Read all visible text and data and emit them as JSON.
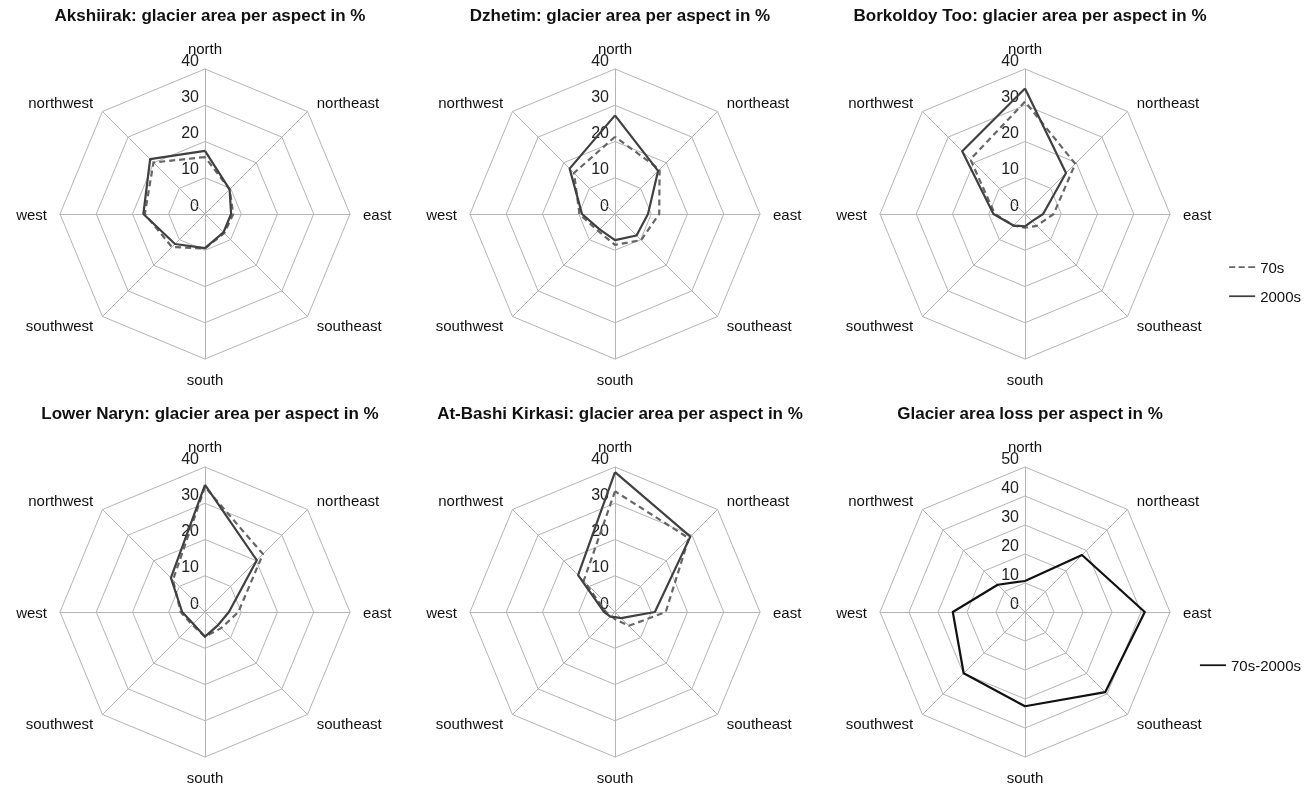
{
  "chart_data": [
    {
      "type": "radar",
      "title": "Akshiirak: glacier area per aspect in %",
      "categories": [
        "north",
        "northeast",
        "east",
        "southeast",
        "south",
        "southwest",
        "west",
        "northwest"
      ],
      "ylim": [
        0,
        40
      ],
      "yticks": [
        0,
        10,
        20,
        30,
        40
      ],
      "grid": true,
      "marker": "none",
      "legend": false,
      "series": [
        {
          "color": "#666666",
          "line_style": "dashed",
          "values": [
            15.7,
            9.6,
            7.8,
            7.5,
            9.5,
            12.9,
            16.6,
            20.1
          ]
        },
        {
          "color": "#404040",
          "line_style": "solid",
          "values": [
            17.4,
            9.6,
            7.2,
            7.2,
            9.4,
            11.7,
            17,
            21.4
          ]
        }
      ]
    },
    {
      "type": "radar",
      "title": "Dzhetim: glacier area per aspect in %",
      "categories": [
        "north",
        "northeast",
        "east",
        "southeast",
        "south",
        "southwest",
        "west",
        "northwest"
      ],
      "ylim": [
        0,
        40
      ],
      "yticks": [
        0,
        10,
        20,
        30,
        40
      ],
      "grid": true,
      "marker": "none",
      "legend": false,
      "series": [
        {
          "color": "#666666",
          "line_style": "dashed",
          "values": [
            21.3,
            17.4,
            12.2,
            10.2,
            8.5,
            6.6,
            9.8,
            16
          ]
        },
        {
          "color": "#404040",
          "line_style": "solid",
          "values": [
            27.2,
            16.8,
            9.1,
            8.4,
            7.2,
            6,
            9.1,
            17.7
          ]
        }
      ]
    },
    {
      "type": "radar",
      "title": "Borkoldoy Too: glacier area per aspect in %",
      "categories": [
        "north",
        "northeast",
        "east",
        "southeast",
        "south",
        "southwest",
        "west",
        "northwest"
      ],
      "ylim": [
        0,
        40
      ],
      "yticks": [
        0,
        10,
        20,
        30,
        40
      ],
      "grid": true,
      "marker": "none",
      "legend": "right",
      "series": [
        {
          "name": "70s",
          "color": "#666666",
          "line_style": "dashed",
          "values": [
            31,
            19.6,
            7.9,
            4.6,
            3.8,
            4.5,
            8.3,
            21.3
          ]
        },
        {
          "name": "2000s",
          "color": "#404040",
          "line_style": "solid",
          "values": [
            34.6,
            16,
            5,
            2.8,
            3.4,
            4.5,
            8.7,
            24.5
          ]
        }
      ]
    },
    {
      "type": "radar",
      "title": "Lower Naryn: glacier area per aspect in %",
      "categories": [
        "north",
        "northeast",
        "east",
        "southeast",
        "south",
        "southwest",
        "west",
        "northwest"
      ],
      "ylim": [
        0,
        40
      ],
      "yticks": [
        0,
        10,
        20,
        30,
        40
      ],
      "grid": true,
      "marker": "none",
      "legend": false,
      "series": [
        {
          "color": "#666666",
          "line_style": "dashed",
          "values": [
            34.5,
            22.6,
            9.2,
            6.3,
            6.8,
            5,
            6.7,
            12.5
          ]
        },
        {
          "color": "#404040",
          "line_style": "solid",
          "values": [
            35.1,
            20.2,
            6.6,
            5.1,
            6.8,
            4.6,
            6.3,
            13.3
          ]
        }
      ]
    },
    {
      "type": "radar",
      "title": "At-Bashi Kirkasi: glacier area per aspect in %",
      "categories": [
        "north",
        "northeast",
        "east",
        "southeast",
        "south",
        "southwest",
        "west",
        "northwest"
      ],
      "ylim": [
        0,
        40
      ],
      "yticks": [
        0,
        10,
        20,
        30,
        40
      ],
      "grid": true,
      "marker": "none",
      "legend": false,
      "series": [
        {
          "color": "#666666",
          "line_style": "dashed",
          "values": [
            33.3,
            28.8,
            14,
            5.4,
            2,
            1.5,
            2.5,
            12.2
          ]
        },
        {
          "color": "#404040",
          "line_style": "solid",
          "values": [
            38.6,
            29.4,
            11,
            2.4,
            1.4,
            1.8,
            3,
            14.4
          ]
        }
      ]
    },
    {
      "type": "radar",
      "title": "Glacier area loss per aspect in %",
      "categories": [
        "north",
        "northeast",
        "east",
        "southeast",
        "south",
        "southwest",
        "west",
        "northwest"
      ],
      "ylim": [
        0,
        50
      ],
      "yticks": [
        0,
        10,
        20,
        30,
        40,
        50
      ],
      "grid": true,
      "marker": "none",
      "legend": "right",
      "series": [
        {
          "name": "70s-2000s",
          "color": "#111111",
          "line_style": "solid",
          "values": [
            10.7,
            27.8,
            41.3,
            39.1,
            32.5,
            29.9,
            24.9,
            13.3
          ]
        }
      ]
    }
  ]
}
